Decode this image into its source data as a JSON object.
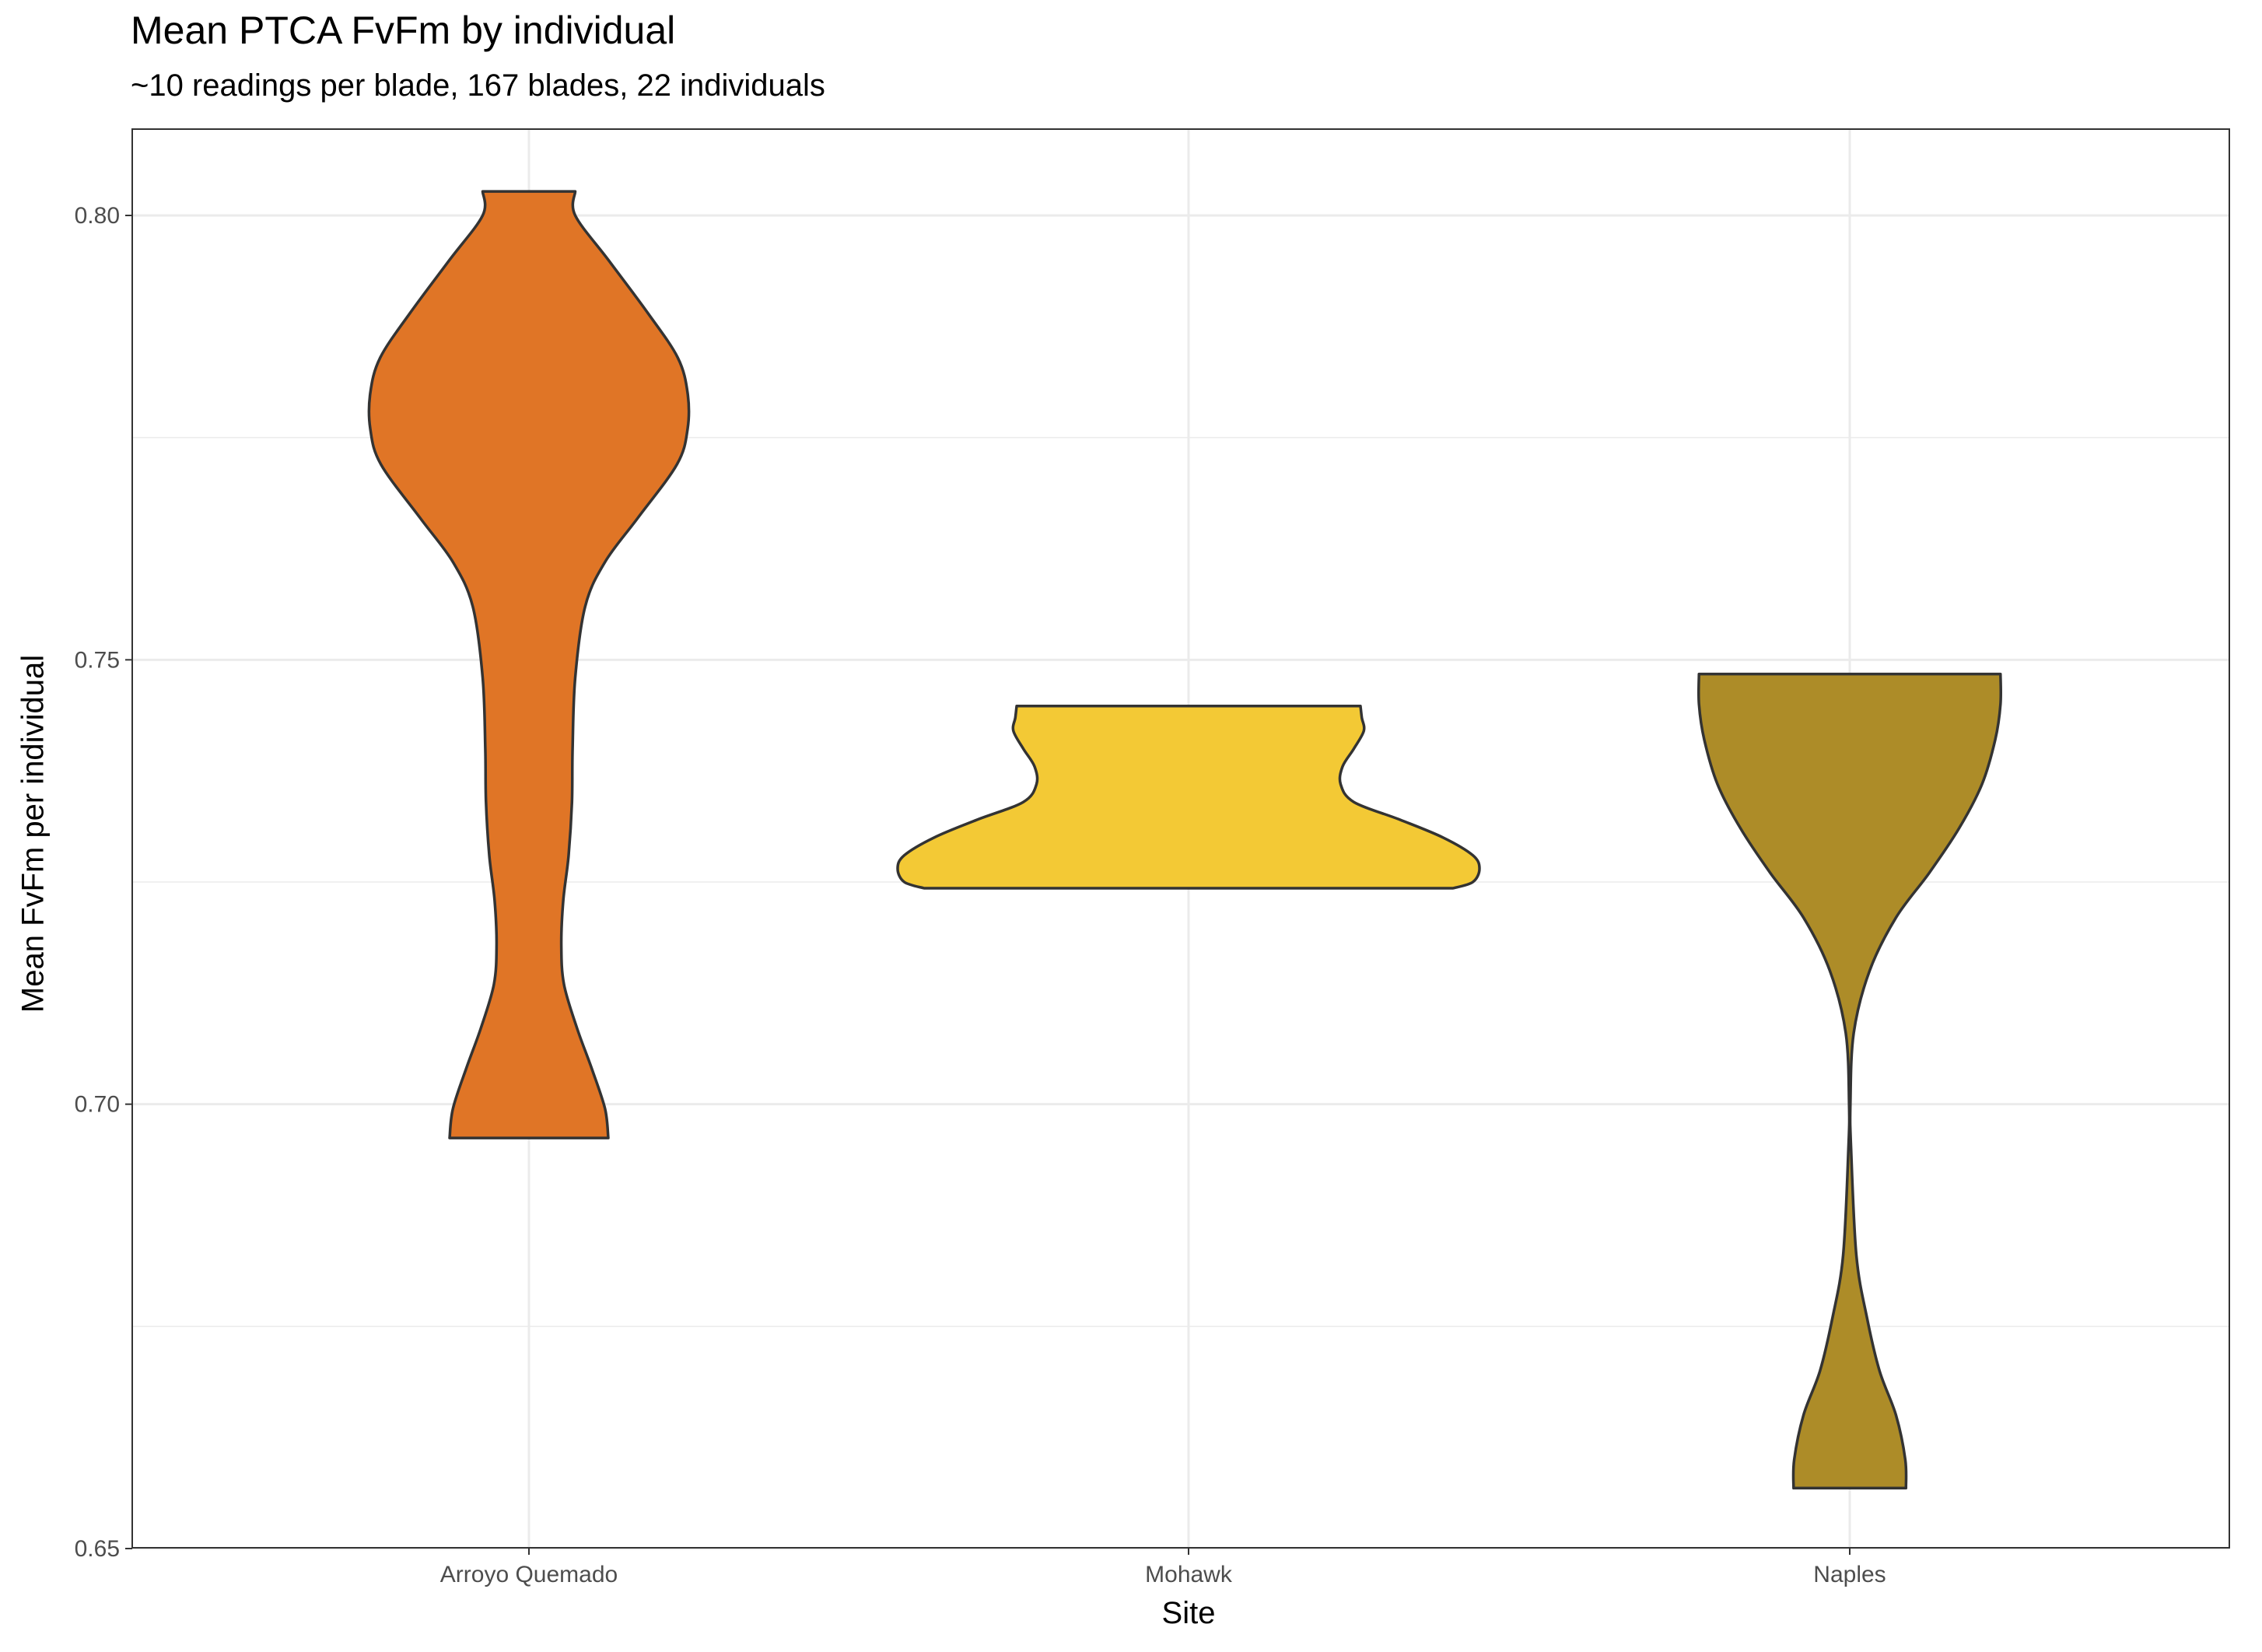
{
  "chart_data": {
    "type": "violin",
    "title": "Mean PTCA FvFm by individual",
    "subtitle": "~10 readings per blade, 167 blades, 22 individuals",
    "xlabel": "Site",
    "ylabel": "Mean FvFm per individual",
    "categories": [
      "Arroyo Quemado",
      "Mohawk",
      "Naples"
    ],
    "ylim": [
      0.65,
      0.81
    ],
    "yticks": [
      0.65,
      0.7,
      0.75,
      0.8
    ],
    "ytick_labels": [
      "0.65",
      "0.70",
      "0.75",
      "0.80"
    ],
    "grid": true,
    "legend": "none",
    "series": [
      {
        "category": "Arroyo Quemado",
        "color": "#e07526",
        "range": [
          0.6962,
          0.8027
        ],
        "half_width": [
          [
            0.6962,
            0.12
          ],
          [
            0.6995,
            0.115
          ],
          [
            0.704,
            0.095
          ],
          [
            0.7085,
            0.073
          ],
          [
            0.7135,
            0.053
          ],
          [
            0.718,
            0.049
          ],
          [
            0.723,
            0.052
          ],
          [
            0.728,
            0.06
          ],
          [
            0.734,
            0.065
          ],
          [
            0.74,
            0.066
          ],
          [
            0.748,
            0.07
          ],
          [
            0.756,
            0.085
          ],
          [
            0.761,
            0.115
          ],
          [
            0.766,
            0.165
          ],
          [
            0.772,
            0.224
          ],
          [
            0.776,
            0.24
          ],
          [
            0.78,
            0.24
          ],
          [
            0.784,
            0.225
          ],
          [
            0.789,
            0.18
          ],
          [
            0.795,
            0.12
          ],
          [
            0.8,
            0.07
          ],
          [
            0.8027,
            0.07
          ]
        ]
      },
      {
        "category": "Mohawk",
        "color": "#f3c935",
        "range": [
          0.7243,
          0.7448
        ],
        "half_width": [
          [
            0.7243,
            0.4
          ],
          [
            0.725,
            0.43
          ],
          [
            0.7265,
            0.44
          ],
          [
            0.728,
            0.43
          ],
          [
            0.73,
            0.385
          ],
          [
            0.732,
            0.32
          ],
          [
            0.734,
            0.25
          ],
          [
            0.736,
            0.23
          ],
          [
            0.738,
            0.233
          ],
          [
            0.74,
            0.25
          ],
          [
            0.742,
            0.265
          ],
          [
            0.7435,
            0.262
          ],
          [
            0.7448,
            0.26
          ]
        ]
      },
      {
        "category": "Naples",
        "color": "#ad8c28",
        "range": [
          0.6568,
          0.7484
        ],
        "half_width": [
          [
            0.6568,
            0.085
          ],
          [
            0.66,
            0.084
          ],
          [
            0.665,
            0.07
          ],
          [
            0.67,
            0.045
          ],
          [
            0.676,
            0.026
          ],
          [
            0.683,
            0.01
          ],
          [
            0.695,
            0.002
          ],
          [
            0.7,
            0.001
          ],
          [
            0.708,
            0.006
          ],
          [
            0.715,
            0.03
          ],
          [
            0.721,
            0.07
          ],
          [
            0.726,
            0.12
          ],
          [
            0.731,
            0.165
          ],
          [
            0.736,
            0.2
          ],
          [
            0.741,
            0.22
          ],
          [
            0.745,
            0.228
          ],
          [
            0.7484,
            0.228
          ]
        ]
      }
    ]
  }
}
